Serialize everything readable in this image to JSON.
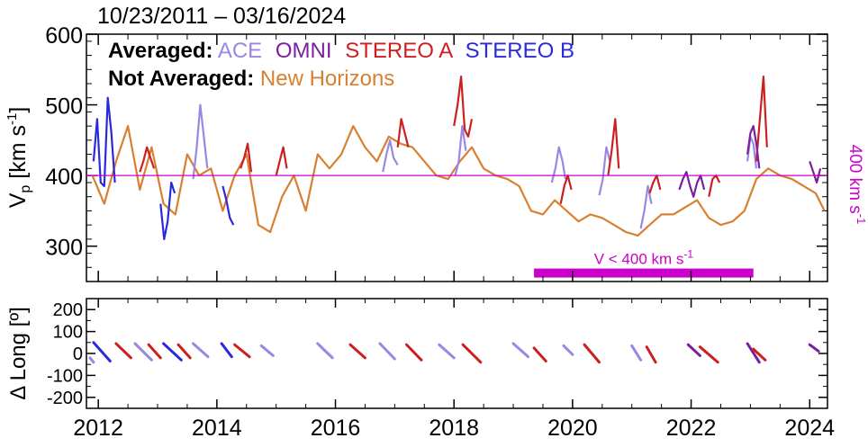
{
  "chart_data": [
    {
      "type": "line",
      "panel": "upper",
      "title": "10/23/2011 – 03/16/2024",
      "ylabel_main": "V",
      "ylabel_sub": "p",
      "ylabel_units": " [km s",
      "ylabel_exp": "-1",
      "ylabel_close": "]",
      "right_label_main": "400 km s",
      "right_label_exp": "-1",
      "xlim": [
        2011.8,
        2024.3
      ],
      "ylim": [
        250,
        600
      ],
      "yticks": [
        300,
        400,
        500,
        600
      ],
      "grid": false,
      "legend": {
        "row1_prefix": "Averaged:",
        "row2_prefix": "Not Averaged:",
        "placement": "top-left"
      },
      "reference_line": {
        "y": 400,
        "color": "#cc00cc"
      },
      "slow_wind_bar": {
        "x_start": 2019.35,
        "x_end": 2023.05,
        "y": 262,
        "label_main": "V < 400 km s",
        "label_exp": "-1",
        "color": "#cc00cc"
      },
      "series": [
        {
          "name": "ACE",
          "color": "#9b87e3",
          "x": [
            2013.6,
            2013.66,
            2013.72,
            2013.78,
            2013.84,
            2016.8,
            2016.86,
            2016.92,
            2016.98,
            2017.05,
            2018.02,
            2018.08,
            2018.14,
            2018.2,
            2019.65,
            2019.71,
            2019.77,
            2019.83,
            2019.88,
            2020.45,
            2020.51,
            2020.57,
            2020.63,
            2021.15,
            2021.21,
            2021.27,
            2021.33,
            2022.95,
            2023.0,
            2023.05,
            2023.1
          ],
          "y": [
            395,
            440,
            500,
            455,
            410,
            405,
            430,
            450,
            425,
            415,
            400,
            420,
            470,
            435,
            390,
            410,
            440,
            420,
            395,
            372,
            395,
            440,
            420,
            325,
            350,
            385,
            360,
            420,
            455,
            445,
            410
          ]
        },
        {
          "name": "OMNI",
          "color": "#7a1f9e",
          "x": [
            2021.8,
            2021.86,
            2021.92,
            2021.98,
            2022.04,
            2022.1,
            2022.16,
            2022.22,
            2022.95,
            2023.0,
            2023.05,
            2023.1,
            2023.15,
            2024.0,
            2024.06,
            2024.12,
            2024.18
          ],
          "y": [
            380,
            395,
            405,
            385,
            370,
            390,
            400,
            380,
            430,
            460,
            470,
            445,
            410,
            420,
            405,
            390,
            410
          ]
        },
        {
          "name": "STEREO A",
          "color": "#cc2020",
          "x": [
            2012.7,
            2012.76,
            2012.82,
            2012.88,
            2012.94,
            2014.4,
            2014.46,
            2014.52,
            2014.58,
            2015.0,
            2015.06,
            2015.12,
            2015.18,
            2017.05,
            2017.11,
            2017.17,
            2017.23,
            2018.0,
            2018.06,
            2018.12,
            2018.18,
            2018.24,
            2018.3,
            2019.8,
            2019.86,
            2019.92,
            2019.98,
            2020.6,
            2020.66,
            2020.72,
            2020.78,
            2021.3,
            2021.36,
            2021.42,
            2021.48,
            2022.3,
            2022.36,
            2022.42,
            2022.48,
            2023.1,
            2023.16,
            2023.22,
            2023.28
          ],
          "y": [
            405,
            420,
            440,
            425,
            410,
            410,
            425,
            445,
            405,
            400,
            420,
            440,
            410,
            440,
            480,
            460,
            440,
            470,
            500,
            540,
            465,
            455,
            480,
            360,
            385,
            400,
            380,
            400,
            435,
            480,
            410,
            375,
            390,
            400,
            380,
            370,
            395,
            400,
            390,
            420,
            480,
            540,
            440
          ]
        },
        {
          "name": "STEREO B",
          "color": "#2a2adb",
          "x": [
            2011.92,
            2011.98,
            2012.04,
            2012.1,
            2012.16,
            2012.22,
            2012.28,
            2013.05,
            2013.11,
            2013.17,
            2013.23,
            2013.29,
            2014.1,
            2014.16,
            2014.22,
            2014.28
          ],
          "y": [
            420,
            480,
            390,
            385,
            510,
            460,
            390,
            360,
            310,
            335,
            390,
            375,
            385,
            365,
            340,
            330
          ]
        },
        {
          "name": "New Horizons",
          "color": "#d98030",
          "x": [
            2011.9,
            2012.1,
            2012.3,
            2012.5,
            2012.7,
            2012.9,
            2013.1,
            2013.3,
            2013.5,
            2013.7,
            2013.9,
            2014.1,
            2014.3,
            2014.5,
            2014.7,
            2014.9,
            2015.1,
            2015.3,
            2015.5,
            2015.7,
            2015.9,
            2016.1,
            2016.3,
            2016.5,
            2016.7,
            2016.9,
            2017.1,
            2017.3,
            2017.5,
            2017.7,
            2017.9,
            2018.1,
            2018.3,
            2018.5,
            2018.7,
            2018.9,
            2019.1,
            2019.3,
            2019.5,
            2019.7,
            2019.9,
            2020.1,
            2020.3,
            2020.5,
            2020.7,
            2020.9,
            2021.1,
            2021.3,
            2021.5,
            2021.7,
            2021.9,
            2022.1,
            2022.3,
            2022.5,
            2022.7,
            2022.9,
            2023.1,
            2023.3,
            2023.5,
            2023.7,
            2023.9,
            2024.1,
            2024.25
          ],
          "y": [
            400,
            360,
            420,
            470,
            380,
            440,
            360,
            345,
            430,
            400,
            410,
            350,
            400,
            430,
            330,
            320,
            370,
            400,
            350,
            430,
            410,
            430,
            470,
            440,
            420,
            455,
            445,
            440,
            420,
            400,
            395,
            420,
            440,
            410,
            400,
            395,
            385,
            350,
            345,
            365,
            350,
            335,
            345,
            340,
            330,
            320,
            315,
            330,
            345,
            345,
            355,
            365,
            340,
            330,
            335,
            350,
            395,
            410,
            400,
            395,
            385,
            375,
            350
          ]
        }
      ]
    },
    {
      "type": "scatter",
      "panel": "lower",
      "ylabel": "Δ Long [º]",
      "xlim": [
        2011.8,
        2024.3
      ],
      "ylim": [
        -250,
        250
      ],
      "yticks": [
        -200,
        -100,
        0,
        100,
        200
      ],
      "ytick_labels": [
        "-200",
        "-100",
        "0",
        "100",
        "200"
      ],
      "xticks": [
        2012,
        2014,
        2016,
        2018,
        2020,
        2022,
        2024
      ],
      "xtick_labels": [
        "2012",
        "2014",
        "2016",
        "2018",
        "2020",
        "2022",
        "2024"
      ],
      "segments": [
        {
          "series": "STEREO B",
          "color": "#2a2adb",
          "x": [
            2011.92,
            2012.2
          ],
          "y": [
            50,
            -35
          ]
        },
        {
          "series": "ACE",
          "color": "#9b87e3",
          "x": [
            2011.86,
            2011.92
          ],
          "y": [
            -20,
            -40
          ]
        },
        {
          "series": "STEREO A",
          "color": "#cc2020",
          "x": [
            2012.3,
            2012.55
          ],
          "y": [
            45,
            -20
          ]
        },
        {
          "series": "ACE",
          "color": "#9b87e3",
          "x": [
            2012.62,
            2012.9
          ],
          "y": [
            45,
            -30
          ]
        },
        {
          "series": "STEREO A",
          "color": "#cc2020",
          "x": [
            2012.85,
            2013.05
          ],
          "y": [
            40,
            -20
          ]
        },
        {
          "series": "STEREO B",
          "color": "#2a2adb",
          "x": [
            2013.1,
            2013.4
          ],
          "y": [
            45,
            -30
          ]
        },
        {
          "series": "STEREO A",
          "color": "#cc2020",
          "x": [
            2013.35,
            2013.55
          ],
          "y": [
            40,
            -20
          ]
        },
        {
          "series": "ACE",
          "color": "#9b87e3",
          "x": [
            2013.6,
            2013.85
          ],
          "y": [
            45,
            -15
          ]
        },
        {
          "series": "STEREO B",
          "color": "#2a2adb",
          "x": [
            2014.08,
            2014.25
          ],
          "y": [
            45,
            -15
          ]
        },
        {
          "series": "STEREO A",
          "color": "#cc2020",
          "x": [
            2014.3,
            2014.55
          ],
          "y": [
            40,
            -15
          ]
        },
        {
          "series": "ACE",
          "color": "#9b87e3",
          "x": [
            2014.75,
            2014.95
          ],
          "y": [
            35,
            -10
          ]
        },
        {
          "series": "ACE",
          "color": "#9b87e3",
          "x": [
            2015.7,
            2015.95
          ],
          "y": [
            45,
            -20
          ]
        },
        {
          "series": "STEREO A",
          "color": "#cc2020",
          "x": [
            2016.25,
            2016.5
          ],
          "y": [
            40,
            -20
          ]
        },
        {
          "series": "ACE",
          "color": "#9b87e3",
          "x": [
            2016.75,
            2017.0
          ],
          "y": [
            45,
            -25
          ]
        },
        {
          "series": "STEREO A",
          "color": "#cc2020",
          "x": [
            2017.2,
            2017.45
          ],
          "y": [
            40,
            -30
          ]
        },
        {
          "series": "ACE",
          "color": "#9b87e3",
          "x": [
            2017.75,
            2018.0
          ],
          "y": [
            40,
            -20
          ]
        },
        {
          "series": "STEREO A",
          "color": "#cc2020",
          "x": [
            2018.15,
            2018.45
          ],
          "y": [
            40,
            -40
          ]
        },
        {
          "series": "ACE",
          "color": "#9b87e3",
          "x": [
            2019.0,
            2019.25
          ],
          "y": [
            45,
            -15
          ]
        },
        {
          "series": "STEREO A",
          "color": "#cc2020",
          "x": [
            2019.35,
            2019.55
          ],
          "y": [
            25,
            -35
          ]
        },
        {
          "series": "ACE",
          "color": "#9b87e3",
          "x": [
            2019.85,
            2020.0
          ],
          "y": [
            35,
            -5
          ]
        },
        {
          "series": "STEREO A",
          "color": "#cc2020",
          "x": [
            2020.2,
            2020.45
          ],
          "y": [
            40,
            -40
          ]
        },
        {
          "series": "ACE",
          "color": "#9b87e3",
          "x": [
            2021.0,
            2021.15
          ],
          "y": [
            35,
            -30
          ]
        },
        {
          "series": "STEREO A",
          "color": "#cc2020",
          "x": [
            2021.25,
            2021.4
          ],
          "y": [
            30,
            -40
          ]
        },
        {
          "series": "OMNI",
          "color": "#7a1f9e",
          "x": [
            2021.95,
            2022.15
          ],
          "y": [
            40,
            -10
          ]
        },
        {
          "series": "STEREO A",
          "color": "#cc2020",
          "x": [
            2022.15,
            2022.45
          ],
          "y": [
            30,
            -40
          ]
        },
        {
          "series": "OMNI",
          "color": "#7a1f9e",
          "x": [
            2022.95,
            2023.15
          ],
          "y": [
            45,
            -40
          ]
        },
        {
          "series": "STEREO A",
          "color": "#cc2020",
          "x": [
            2023.05,
            2023.25
          ],
          "y": [
            20,
            -30
          ]
        },
        {
          "series": "OMNI",
          "color": "#7a1f9e",
          "x": [
            2024.0,
            2024.15
          ],
          "y": [
            40,
            10
          ]
        }
      ]
    }
  ]
}
